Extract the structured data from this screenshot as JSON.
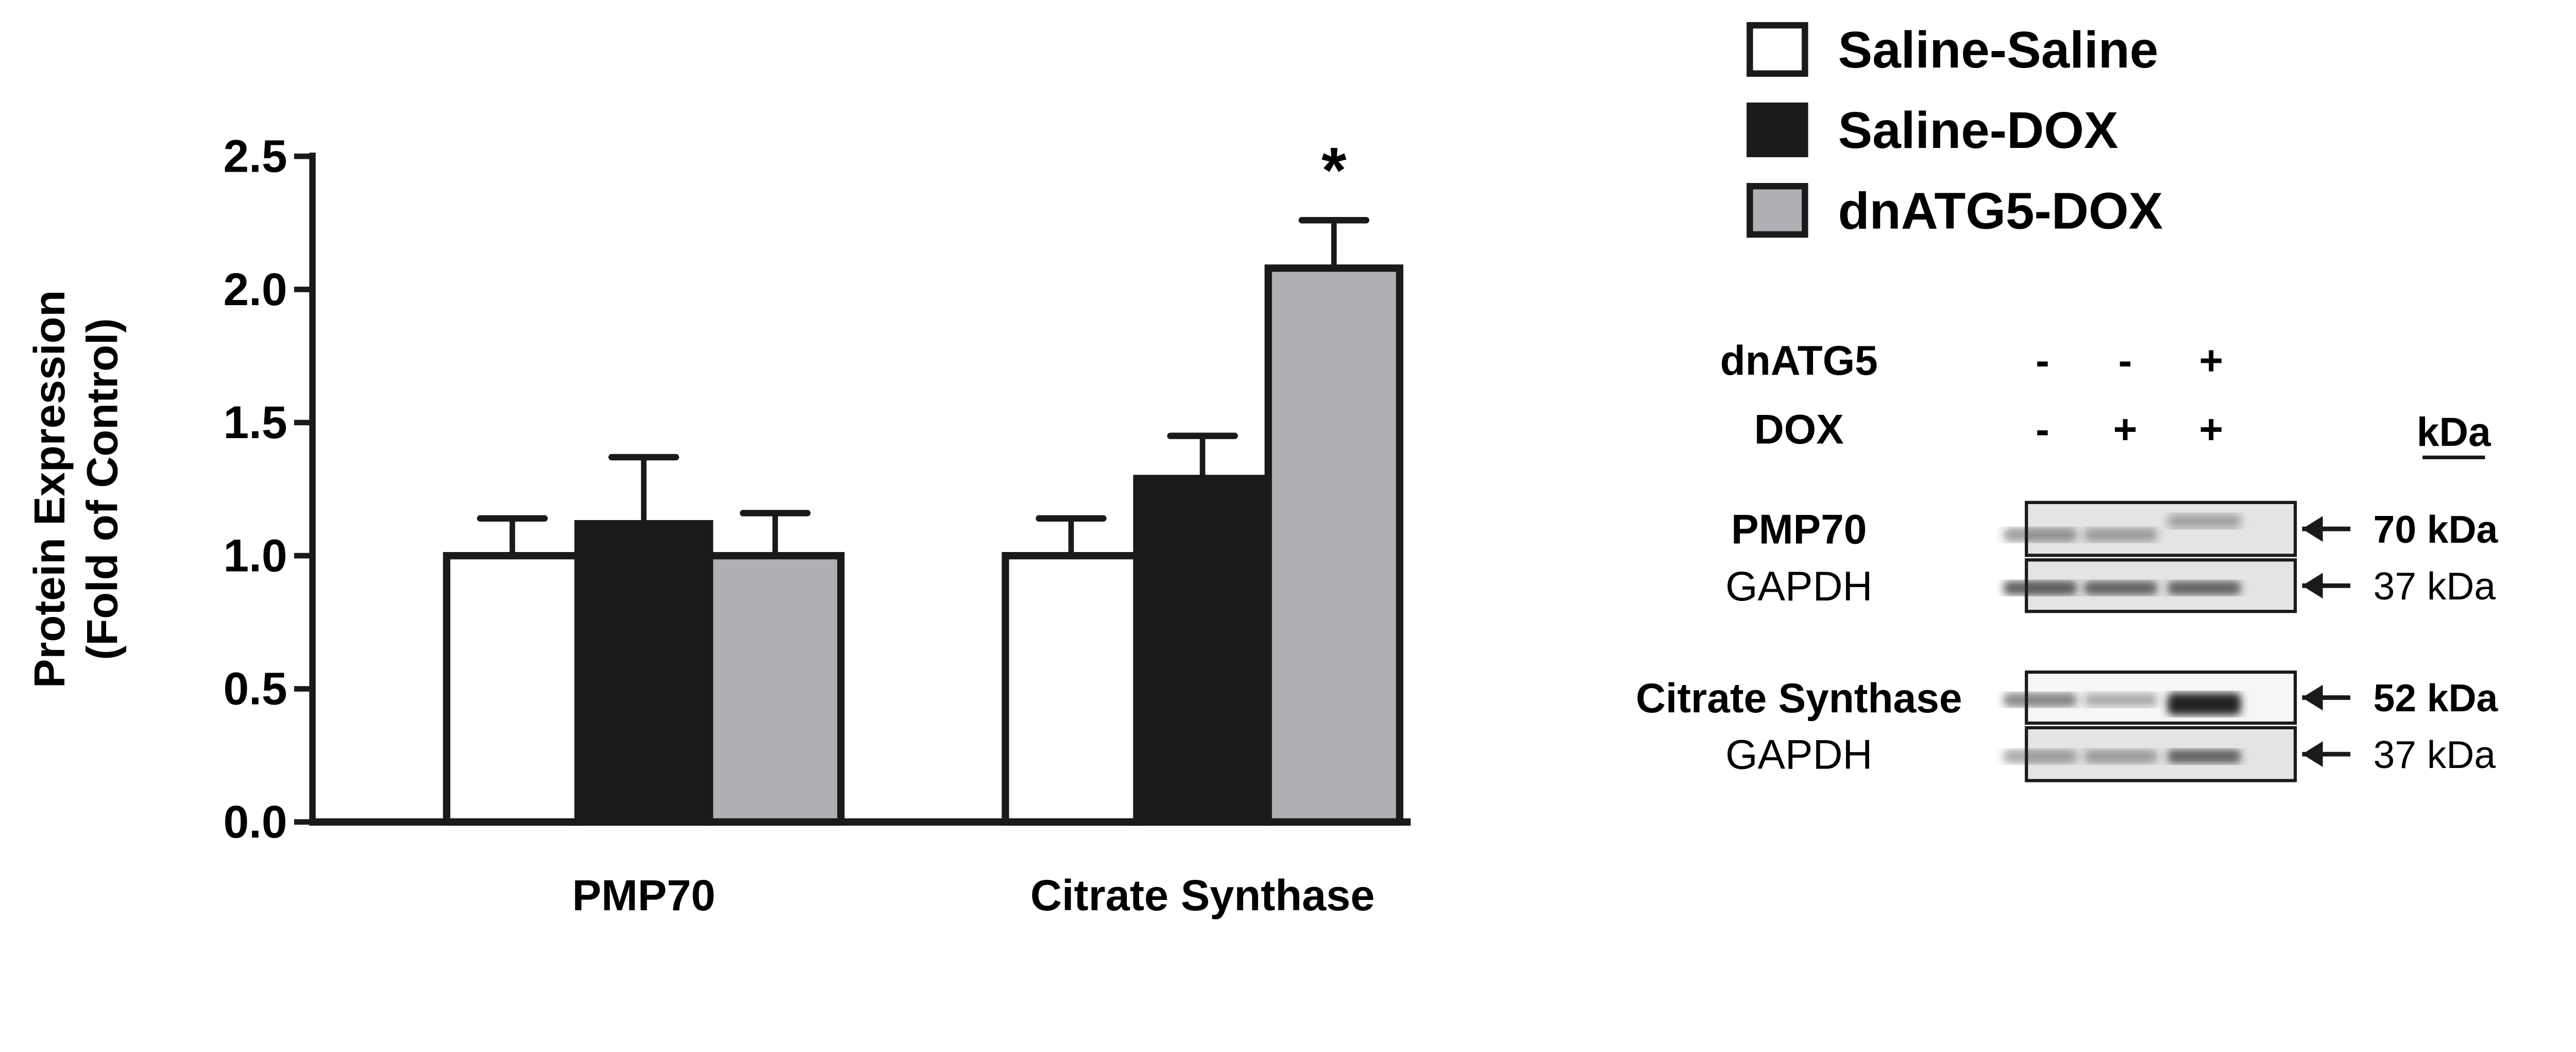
{
  "chart_data": {
    "type": "bar",
    "ylabel": [
      "Protein Expression",
      "(Fold of  Control)"
    ],
    "xlabel": "",
    "ylim": [
      0,
      2.5
    ],
    "yticks": [
      "0.0",
      "0.5",
      "1.0",
      "1.5",
      "2.0",
      "2.5"
    ],
    "categories": [
      "PMP70",
      "Citrate Synthase"
    ],
    "series": [
      {
        "name": "Saline-Saline",
        "color": "#ffffff",
        "values": [
          1.0,
          1.0
        ],
        "error_upper": [
          1.14,
          1.14
        ]
      },
      {
        "name": "Saline-DOX",
        "color": "#1a1a1a",
        "values": [
          1.12,
          1.29
        ],
        "error_upper": [
          1.37,
          1.45
        ]
      },
      {
        "name": "dnATG5-DOX",
        "color": "#b0b0b4",
        "values": [
          1.0,
          2.08
        ],
        "error_upper": [
          1.16,
          2.26
        ]
      }
    ],
    "annotations": [
      {
        "series": "dnATG5-DOX",
        "category": "Citrate Synthase",
        "text": "*"
      }
    ],
    "legend_position": "top-right",
    "grid": false
  },
  "blot": {
    "conditions": [
      {
        "label": "dnATG5",
        "signs": [
          "-",
          "-",
          "+"
        ]
      },
      {
        "label": "DOX",
        "signs": [
          "-",
          "+",
          "+"
        ]
      }
    ],
    "kda_header": "kDa",
    "rows": [
      {
        "label": "PMP70",
        "bold": true,
        "size": "70 kDa"
      },
      {
        "label": "GAPDH",
        "bold": false,
        "size": "37 kDa"
      },
      {
        "label": "Citrate Synthase",
        "bold": true,
        "size": "52 kDa"
      },
      {
        "label": "GAPDH",
        "bold": false,
        "size": "37 kDa"
      }
    ]
  }
}
